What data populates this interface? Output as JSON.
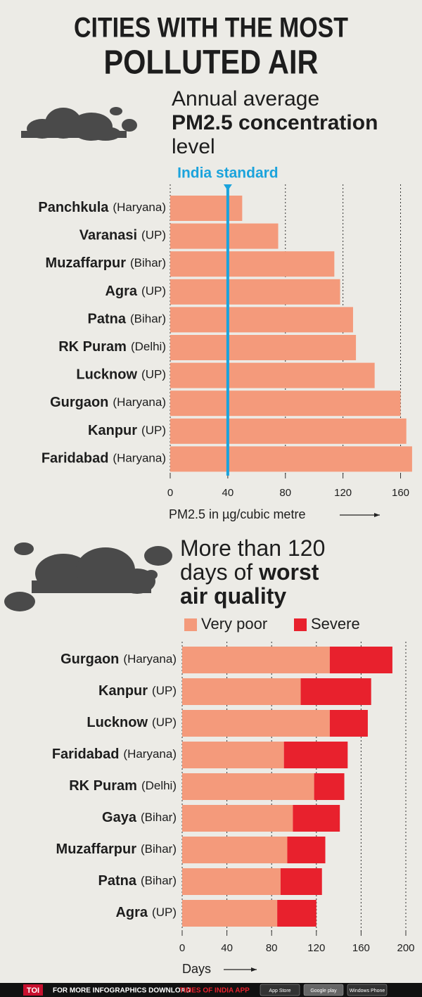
{
  "title_lines": [
    "CITIES WITH THE MOST",
    "POLLUTED AIR"
  ],
  "chart_data": [
    {
      "type": "bar",
      "title_lines": [
        [
          {
            "text": "Annual average",
            "bold": false
          }
        ],
        [
          {
            "text": "PM2.5 concentration",
            "bold": true
          }
        ],
        [
          {
            "text": "level",
            "bold": false
          }
        ]
      ],
      "categories": [
        "Panchkula",
        "Varanasi",
        "Muzaffarpur",
        "Agra",
        "Patna",
        "RK Puram",
        "Lucknow",
        "Gurgaon",
        "Kanpur",
        "Faridabad"
      ],
      "states": [
        "(Haryana)",
        "(UP)",
        "(Bihar)",
        "(UP)",
        "(Bihar)",
        "(Delhi)",
        "(UP)",
        "(Haryana)",
        "(UP)",
        "(Haryana)"
      ],
      "values": [
        50,
        75,
        114,
        118,
        127,
        129,
        142,
        160,
        164,
        168
      ],
      "color": "#f49a7b",
      "reference": {
        "label": "India standard",
        "value": 40,
        "color": "#1ba3dc"
      },
      "xlim": [
        0,
        170
      ],
      "xticks": [
        0,
        40,
        80,
        120,
        160
      ],
      "grid": true,
      "xlabel": "PM2.5 in µg/cubic metre"
    },
    {
      "type": "stacked_bar",
      "title_lines": [
        [
          {
            "text": "More than 120",
            "bold": false
          }
        ],
        [
          {
            "text": "days of ",
            "bold": false
          },
          {
            "text": "worst",
            "bold": true
          }
        ],
        [
          {
            "text": "air quality",
            "bold": true
          }
        ]
      ],
      "categories": [
        "Gurgaon",
        "Kanpur",
        "Lucknow",
        "Faridabad",
        "RK Puram",
        "Gaya",
        "Muzaffarpur",
        "Patna",
        "Agra"
      ],
      "states": [
        "(Haryana)",
        "(UP)",
        "(UP)",
        "(Haryana)",
        "(Delhi)",
        "(Bihar)",
        "(Bihar)",
        "(Bihar)",
        "(UP)"
      ],
      "series": [
        {
          "name": "Very poor",
          "color": "#f49a7b",
          "values": [
            132,
            106,
            132,
            91,
            118,
            99,
            94,
            88,
            85
          ]
        },
        {
          "name": "Severe",
          "color": "#e8212d",
          "values": [
            56,
            63,
            34,
            57,
            27,
            42,
            34,
            37,
            35
          ]
        }
      ],
      "xlim": [
        0,
        200
      ],
      "xticks": [
        0,
        40,
        80,
        120,
        160,
        200
      ],
      "grid": true,
      "xlabel": "Days"
    }
  ],
  "footer": {
    "brand": "TOI",
    "text": "FOR MORE  INFOGRAPHICS DOWNLOAD",
    "app": "TIMES OF INDIA APP",
    "stores": [
      "App Store",
      "Google play",
      "Windows Phone"
    ]
  }
}
